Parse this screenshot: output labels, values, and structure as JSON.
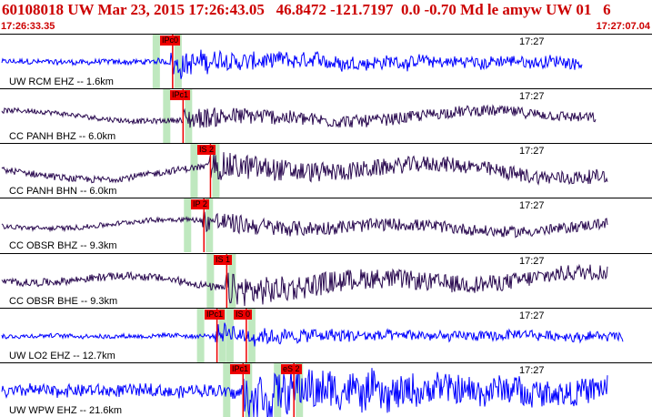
{
  "header": {
    "title": "60108018 UW Mar 23, 2015 17:26:43.05   46.8472 -121.7197  0.0 -0.70 Md le amyw UW 01   6",
    "start_time": "17:26:33.35",
    "end_time": "17:27:07.04"
  },
  "colors": {
    "title": "#cc0000",
    "blue_trace": "#0000ff",
    "purple_trace": "#2a0a50",
    "pick": "#ee0000",
    "window": "#bfe8bf"
  },
  "panels": [
    {
      "label": "UW RCM EHZ -- 1.6km",
      "time": "17:27",
      "color": "blue",
      "amp": 0.25,
      "burst": 0.78,
      "picks": [
        {
          "text": "IPc0",
          "pos": 0.262
        }
      ]
    },
    {
      "label": "CC PANH BHZ -- 6.0km",
      "time": "17:27",
      "color": "purple",
      "amp": 0.3,
      "burst": 0.4,
      "picks": [
        {
          "text": "IPc1",
          "pos": 0.278
        }
      ]
    },
    {
      "label": "CC PANH BHN -- 6.0km",
      "time": "17:27",
      "color": "purple",
      "amp": 0.4,
      "burst": 0.45,
      "picks": [
        {
          "text": "IS 2",
          "pos": 0.32
        }
      ]
    },
    {
      "label": "CC OBSR BHZ -- 9.3km",
      "time": "17:27",
      "color": "purple",
      "amp": 0.3,
      "burst": 0.5,
      "picks": [
        {
          "text": "IP 2",
          "pos": 0.31
        }
      ]
    },
    {
      "label": "CC OBSR BHE -- 9.3km",
      "time": "17:27",
      "color": "purple",
      "amp": 0.45,
      "burst": 0.55,
      "picks": [
        {
          "text": "IS 1",
          "pos": 0.345
        }
      ]
    },
    {
      "label": "UW LO2 EHZ -- 12.7km",
      "time": "17:27",
      "color": "blue",
      "amp": 0.2,
      "burst": 0.8,
      "picks": [
        {
          "text": "IPc1",
          "pos": 0.33
        },
        {
          "text": "IS 0",
          "pos": 0.375
        }
      ]
    },
    {
      "label": "UW WPW EHZ -- 21.6km",
      "time": "17:27",
      "color": "blue",
      "amp": 0.55,
      "burst": 0.7,
      "picks": [
        {
          "text": "IPc1",
          "pos": 0.37
        },
        {
          "text": "eS 2",
          "pos": 0.448
        }
      ]
    }
  ]
}
